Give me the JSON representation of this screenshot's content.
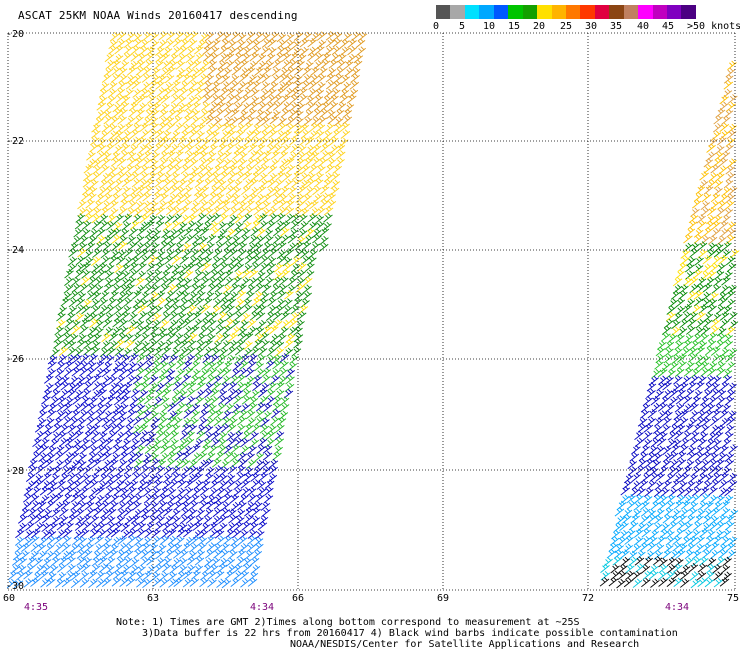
{
  "title": "ASCAT 25KM NOAA Winds 20160417 descending",
  "legend": {
    "colors": [
      "#555555",
      "#a8a8a8",
      "#00e0ff",
      "#00a8ff",
      "#0058ff",
      "#00c400",
      "#14a000",
      "#ffe000",
      "#ffb400",
      "#ff7800",
      "#ff3800",
      "#e00040",
      "#8b4513",
      "#c08060",
      "#ff00ff",
      "#c000c0",
      "#8000c0",
      "#4b0082"
    ],
    "labels": [
      "0",
      "5",
      "10",
      "15",
      "20",
      "25",
      "30",
      "35",
      "40",
      "45",
      ">50 knots"
    ]
  },
  "map": {
    "lat_ticks": [
      "-20",
      "-22",
      "-24",
      "-26",
      "-28",
      "-30"
    ],
    "lon_ticks": [
      "60",
      "63",
      "66",
      "69",
      "72",
      "75"
    ],
    "time_labels": [
      "4:35",
      "4:34",
      "4:34"
    ]
  },
  "notes": {
    "line1": "Note: 1) Times are GMT 2)Times along bottom correspond to measurement at ~25S",
    "line2": "3)Data buffer is 22 hrs from 20160417 4) Black wind barbs indicate possible contamination",
    "line3": "NOAA/NESDIS/Center for Satellite Applications and Research"
  }
}
